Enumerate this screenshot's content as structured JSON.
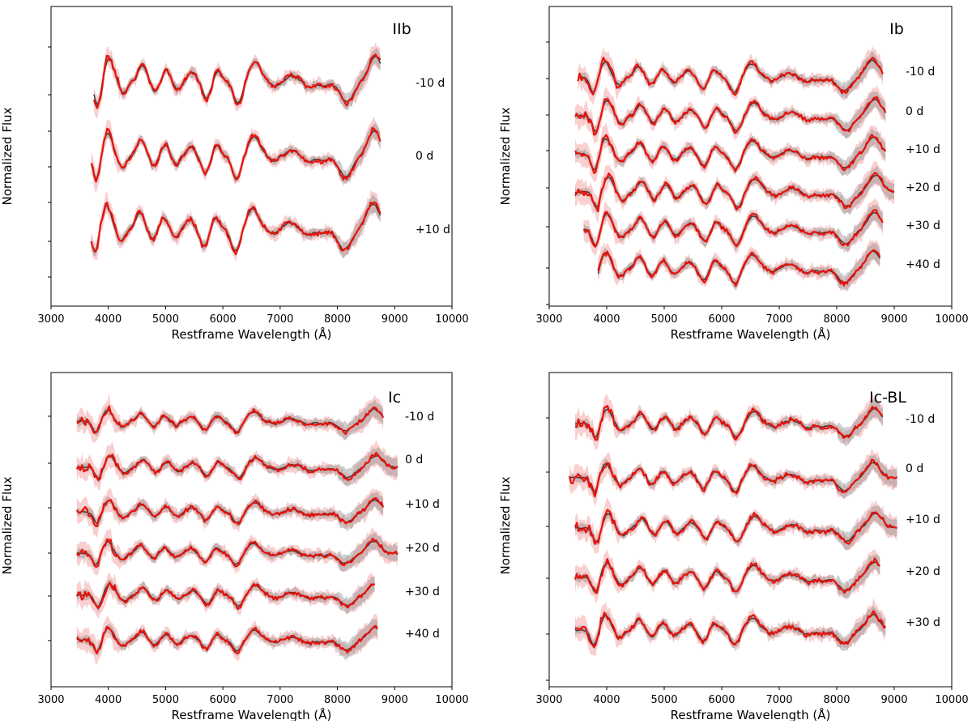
{
  "chart_data": [
    {
      "type": "line",
      "title": "IIb",
      "xlabel": "Restframe Wavelength (Å)",
      "ylabel": "Normalized Flux",
      "xlim": [
        3000,
        10000
      ],
      "xticks": [
        "3000",
        "4000",
        "5000",
        "6000",
        "7000",
        "8000",
        "9000",
        "10000"
      ],
      "y_tick_labels": "none",
      "epochs": [
        {
          "label": "-10 d",
          "wl_range": [
            3750,
            8750
          ]
        },
        {
          "label": "0 d",
          "wl_range": [
            3700,
            8750
          ]
        },
        {
          "label": "+10 d",
          "wl_range": [
            3700,
            8750
          ]
        }
      ],
      "series": [
        {
          "name": "",
          "color": "#e8120c",
          "band_color": "#f08080"
        },
        {
          "name": "",
          "color": "#3a3a3a",
          "band_color": "#808080"
        }
      ]
    },
    {
      "type": "line",
      "title": "Ib",
      "xlabel": "Restframe Wavelength (Å)",
      "ylabel": "Normalized Flux",
      "xlim": [
        3000,
        10000
      ],
      "xticks": [
        "3000",
        "4000",
        "5000",
        "6000",
        "7000",
        "8000",
        "9000",
        "10000"
      ],
      "y_tick_labels": "none",
      "epochs": [
        {
          "label": "-10 d",
          "wl_range": [
            3500,
            8800
          ]
        },
        {
          "label": "0 d",
          "wl_range": [
            3450,
            8850
          ]
        },
        {
          "label": "+10 d",
          "wl_range": [
            3450,
            8850
          ]
        },
        {
          "label": "+20 d",
          "wl_range": [
            3450,
            9000
          ]
        },
        {
          "label": "+30 d",
          "wl_range": [
            3600,
            8800
          ]
        },
        {
          "label": "+40 d",
          "wl_range": [
            3850,
            8750
          ]
        }
      ],
      "series": [
        {
          "name": "",
          "color": "#e8120c",
          "band_color": "#f08080"
        },
        {
          "name": "",
          "color": "#3a3a3a",
          "band_color": "#808080"
        }
      ]
    },
    {
      "type": "line",
      "title": "Ic",
      "xlabel": "Restframe Wavelength (Å)",
      "ylabel": "Normalized Flux",
      "xlim": [
        3000,
        10000
      ],
      "xticks": [
        "3000",
        "4000",
        "5000",
        "6000",
        "7000",
        "8000",
        "9000",
        "10000"
      ],
      "y_tick_labels": "none",
      "epochs": [
        {
          "label": "-10 d",
          "wl_range": [
            3450,
            8800
          ]
        },
        {
          "label": "0 d",
          "wl_range": [
            3450,
            9050
          ]
        },
        {
          "label": "+10 d",
          "wl_range": [
            3450,
            8800
          ]
        },
        {
          "label": "+20 d",
          "wl_range": [
            3450,
            9050
          ]
        },
        {
          "label": "+30 d",
          "wl_range": [
            3450,
            8650
          ]
        },
        {
          "label": "+40 d",
          "wl_range": [
            3450,
            8700
          ]
        }
      ],
      "series": [
        {
          "name": "",
          "color": "#e8120c",
          "band_color": "#f08080"
        },
        {
          "name": "",
          "color": "#3a3a3a",
          "band_color": "#808080"
        }
      ]
    },
    {
      "type": "line",
      "title": "Ic-BL",
      "xlabel": "Restframe Wavelength (Å)",
      "ylabel": "Normalized Flux",
      "xlim": [
        3000,
        10000
      ],
      "xticks": [
        "3000",
        "4000",
        "5000",
        "6000",
        "7000",
        "8000",
        "9000",
        "10000"
      ],
      "y_tick_labels": "none",
      "epochs": [
        {
          "label": "-10 d",
          "wl_range": [
            3450,
            8800
          ]
        },
        {
          "label": "0 d",
          "wl_range": [
            3350,
            9050
          ]
        },
        {
          "label": "+10 d",
          "wl_range": [
            3450,
            9050
          ]
        },
        {
          "label": "+20 d",
          "wl_range": [
            3450,
            8750
          ]
        },
        {
          "label": "+30 d",
          "wl_range": [
            3450,
            8850
          ]
        }
      ],
      "series": [
        {
          "name": "",
          "color": "#e8120c",
          "band_color": "#f08080"
        },
        {
          "name": "",
          "color": "#3a3a3a",
          "band_color": "#808080"
        }
      ]
    }
  ]
}
